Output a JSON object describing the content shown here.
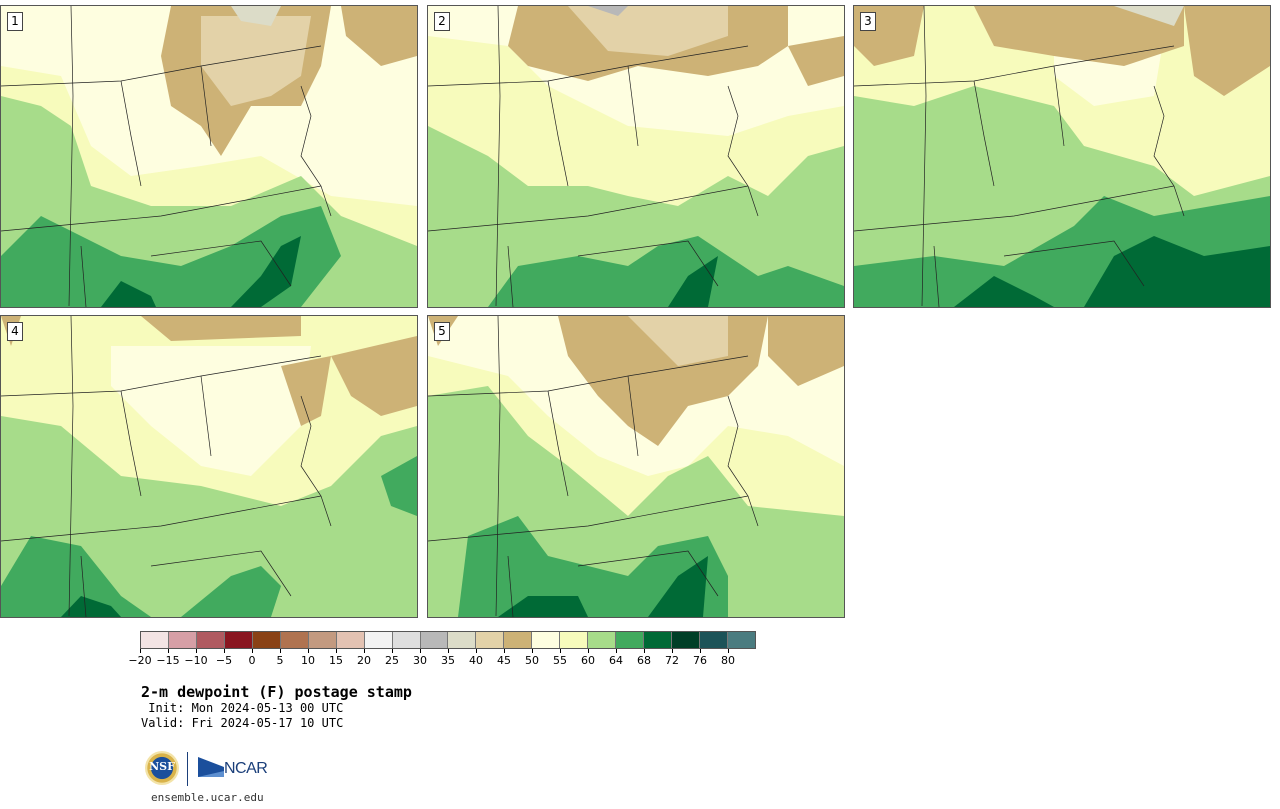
{
  "panels": [
    {
      "label": "1"
    },
    {
      "label": "2"
    },
    {
      "label": "3"
    },
    {
      "label": "4"
    },
    {
      "label": "5"
    }
  ],
  "colorbar": {
    "ticks": [
      "−20",
      "−15",
      "−10",
      "−5",
      "0",
      "5",
      "10",
      "15",
      "20",
      "25",
      "30",
      "35",
      "40",
      "45",
      "50",
      "55",
      "60",
      "64",
      "68",
      "72",
      "76",
      "80"
    ],
    "colors": [
      "#f3e4e4",
      "#d69fa6",
      "#b05a60",
      "#8a1620",
      "#8a4216",
      "#b07350",
      "#c39a80",
      "#e3c2b2",
      "#f3f3f3",
      "#dedede",
      "#b8b8b8",
      "#dcdcc8",
      "#e3d2a8",
      "#cdb276",
      "#fefee0",
      "#f7fbbc",
      "#a7dc8a",
      "#41aa5e",
      "#006a36",
      "#003f27",
      "#1c5358",
      "#4b7c80"
    ],
    "palette_roles": {
      "dp45_50": "#cdb276",
      "dp40_45": "#e3d2a8",
      "dp35_40": "#dcdcc8",
      "dp50_55": "#fefee0",
      "dp55_60": "#f7fbbc",
      "dp60_64": "#a7dc8a",
      "dp64_68": "#41aa5e",
      "dp68_72": "#006a36"
    }
  },
  "title": "2-m dewpoint (F) postage stamp",
  "init": " Init: Mon 2024-05-13 00 UTC",
  "valid": "Valid: Fri 2024-05-17 10 UTC",
  "logos": {
    "nsf": "NSF",
    "ncar": "NCAR"
  },
  "site": "ensemble.ucar.edu"
}
